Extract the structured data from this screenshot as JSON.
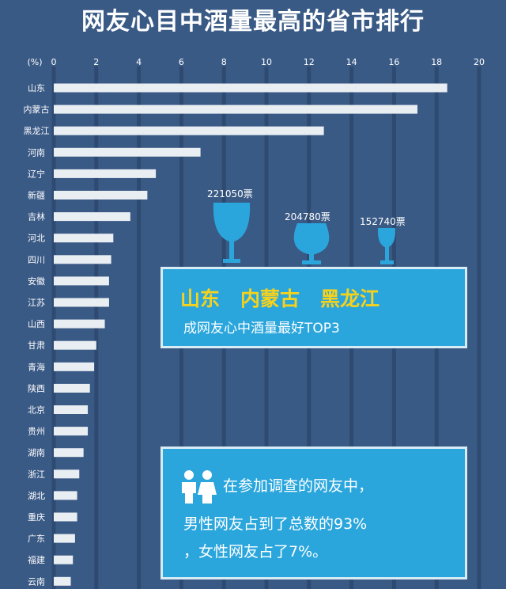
{
  "title": "网友心目中酒量最高的省市排行",
  "chart_data": {
    "type": "bar",
    "orientation": "horizontal",
    "unit_label": "(%)",
    "xlim": [
      0,
      20
    ],
    "ticks": [
      0,
      2,
      4,
      6,
      8,
      10,
      12,
      14,
      16,
      18,
      20
    ],
    "grid": true,
    "categories": [
      "山东",
      "内蒙古",
      "黑龙江",
      "河南",
      "辽宁",
      "新疆",
      "吉林",
      "河北",
      "四川",
      "安徽",
      "江苏",
      "山西",
      "甘肃",
      "青海",
      "陕西",
      "北京",
      "贵州",
      "湖南",
      "浙江",
      "湖北",
      "重庆",
      "广东",
      "福建",
      "云南"
    ],
    "values": [
      18.5,
      17.1,
      12.7,
      6.9,
      4.8,
      4.4,
      3.6,
      2.8,
      2.7,
      2.6,
      2.6,
      2.4,
      2.0,
      1.9,
      1.7,
      1.6,
      1.6,
      1.4,
      1.2,
      1.1,
      1.1,
      1.0,
      0.9,
      0.8
    ],
    "bar_color": "#e9eef3",
    "grid_color": "#2e4a70"
  },
  "top3_votes": [
    "221050票",
    "204780票",
    "152740票"
  ],
  "top3": {
    "names": [
      "山东",
      "内蒙古",
      "黑龙江"
    ],
    "subtitle": "成网友心中酒量最好TOP3"
  },
  "survey": {
    "line1": "在参加调查的网友中，",
    "line2": "男性网友占到了总数的93%",
    "line3": "，女性网友占了7%。"
  },
  "colors": {
    "background": "#3a5a86",
    "accent_box": "#2aa6dd",
    "highlight_text": "#f7d21c",
    "glass": "#2aa6dd"
  },
  "icons": {
    "people": "male-female-people-icon",
    "glasses": [
      "wine-glass-icon",
      "brandy-glass-icon",
      "small-wine-glass-icon"
    ]
  }
}
